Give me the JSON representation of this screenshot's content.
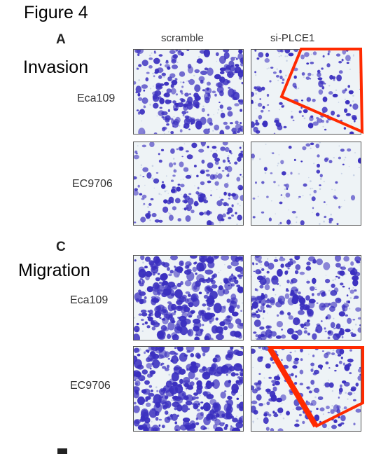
{
  "figure_title": "Figure 4",
  "panels": [
    {
      "letter": "A",
      "section_label": "Invasion",
      "columns": [
        "scramble",
        "si-PLCE1"
      ],
      "rows": [
        "Eca109",
        "EC9706"
      ]
    },
    {
      "letter": "C",
      "section_label": "Migration",
      "rows": [
        "Eca109",
        "EC9706"
      ]
    }
  ],
  "colors": {
    "stain": "#3a2fbf",
    "background": "#eef3f6",
    "highlight": "#ff2a00"
  },
  "micrograph_density": {
    "invasion_eca109_scramble": 0.55,
    "invasion_eca109_si": 0.28,
    "invasion_ec9706_scramble": 0.35,
    "invasion_ec9706_si": 0.06,
    "migration_eca109_scramble": 0.8,
    "migration_eca109_si": 0.6,
    "migration_ec9706_scramble": 0.85,
    "migration_ec9706_si": 0.35
  }
}
